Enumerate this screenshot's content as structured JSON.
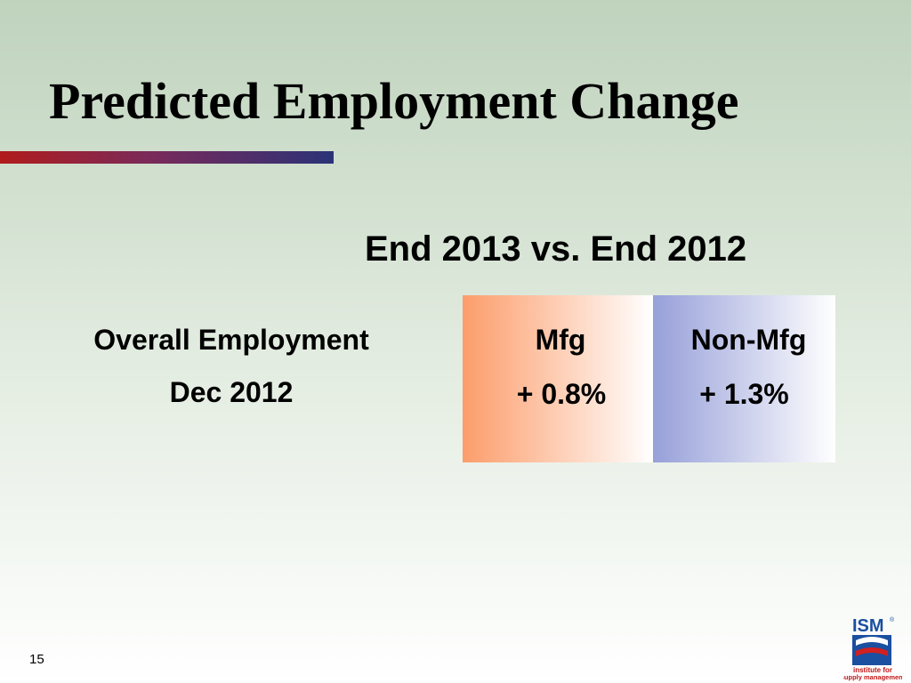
{
  "title": "Predicted Employment Change",
  "subtitle": "End 2013 vs. End 2012",
  "row_label": [
    "Overall Employment",
    "Dec 2012"
  ],
  "columns": [
    {
      "header": "Mfg",
      "value": "+ 0.8%"
    },
    {
      "header": "Non-Mfg",
      "value": "+ 1.3%"
    }
  ],
  "page_number": "15",
  "logo": {
    "name": "ISM",
    "mark": "®",
    "line1": "institute for",
    "line2": "supply management"
  }
}
